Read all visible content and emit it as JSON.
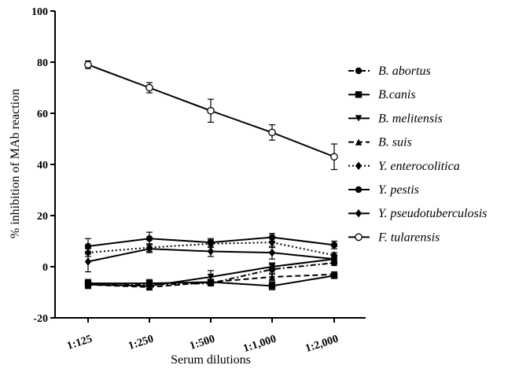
{
  "chart_data": {
    "type": "line",
    "title": "",
    "xlabel": "Serum dilutions",
    "ylabel": "% inhibition of MAb reaction",
    "categories": [
      "1:125",
      "1:250",
      "1:500",
      "1:1,000",
      "1:2,000"
    ],
    "ylim": [
      -20,
      100
    ],
    "yticks": [
      -20,
      0,
      20,
      40,
      60,
      80,
      100
    ],
    "legend_position": "right",
    "series": [
      {
        "name": "B. abortus",
        "marker": "circle-filled",
        "dash": "dashdot",
        "values": [
          -6.5,
          -7,
          -6.5,
          -1,
          1.5
        ],
        "errors": [
          1.5,
          1.5,
          1,
          2,
          1
        ]
      },
      {
        "name": "B.canis",
        "marker": "square-filled",
        "dash": "solid",
        "values": [
          -6.5,
          -6.5,
          -6,
          -7.5,
          -3.5
        ],
        "errors": [
          1.5,
          1.5,
          1,
          1.5,
          1
        ]
      },
      {
        "name": "B. melitensis",
        "marker": "triangle-down-filled",
        "dash": "solid",
        "values": [
          -7,
          -7.5,
          -4,
          0,
          3
        ],
        "errors": [
          1.5,
          1,
          2.5,
          1.5,
          1
        ]
      },
      {
        "name": "B. suis",
        "marker": "triangle-up-filled",
        "dash": "dashed",
        "values": [
          -7,
          -8,
          -6,
          -4,
          -3
        ],
        "errors": [
          1.5,
          1,
          1,
          1.5,
          1
        ]
      },
      {
        "name": "Y. enterocolitica",
        "marker": "diamond-filled",
        "dash": "dotted",
        "values": [
          5.5,
          7.5,
          9,
          9.5,
          4.5
        ],
        "errors": [
          1.5,
          1.5,
          1.5,
          2,
          1
        ]
      },
      {
        "name": "Y. pestis",
        "marker": "circle-filled",
        "dash": "solid",
        "values": [
          8,
          11,
          9.5,
          11.5,
          8.5
        ],
        "errors": [
          3,
          2.5,
          1.5,
          1.5,
          1.5
        ]
      },
      {
        "name": "Y. pseudotuberculosis",
        "marker": "diamond-filled",
        "dash": "solid",
        "values": [
          2,
          7,
          6,
          5.5,
          3
        ],
        "errors": [
          4,
          1.5,
          2,
          2.5,
          1.5
        ]
      },
      {
        "name": "F. tularensis",
        "marker": "circle-open",
        "dash": "solid",
        "values": [
          79,
          70,
          61,
          52.5,
          43
        ],
        "errors": [
          1.5,
          2,
          4.5,
          3,
          5
        ]
      }
    ]
  }
}
